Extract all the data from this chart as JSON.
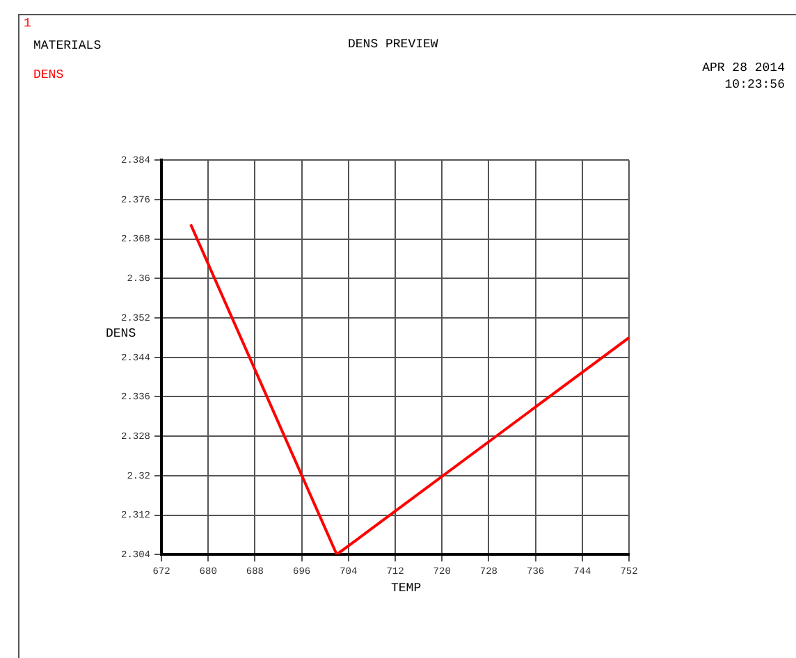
{
  "chart_data": {
    "type": "line",
    "title": "DENS  PREVIEW",
    "xlabel": "TEMP",
    "ylabel": "DENS",
    "annotations": [
      "1",
      "MATERIALS",
      "DENS",
      "APR 28 2014",
      "10:23:56"
    ],
    "x": [
      677,
      702,
      752
    ],
    "series": [
      {
        "color": "#ff0000",
        "values": [
          2.371,
          2.304,
          2.348
        ]
      }
    ],
    "xlim": [
      672,
      752
    ],
    "xticks": [
      672,
      680,
      688,
      696,
      704,
      712,
      720,
      728,
      736,
      744,
      752
    ],
    "ylim": [
      2.304,
      2.384
    ],
    "yticks": [
      2.304,
      2.312,
      2.32,
      2.328,
      2.336,
      2.344,
      2.352,
      2.36,
      2.368,
      2.376,
      2.384
    ],
    "grid": true,
    "legend": false,
    "marker": "none",
    "line_style": "solid"
  }
}
